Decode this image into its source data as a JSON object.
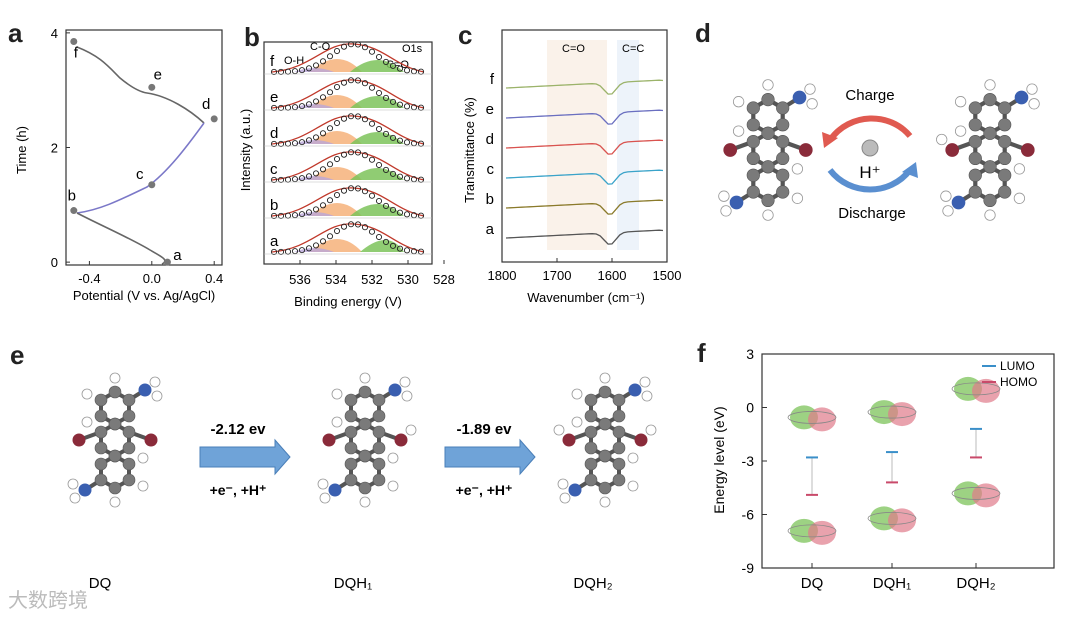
{
  "panels": {
    "a": "a",
    "b": "b",
    "c": "c",
    "d": "d",
    "e": "e",
    "f": "f"
  },
  "panel_a": {
    "ylabel": "Time (h)",
    "xlabel": "Potential (V vs. Ag/AgCl)",
    "yticks": [
      "0",
      "2",
      "4"
    ],
    "xticks": [
      "-0.4",
      "0.0",
      "0.4"
    ],
    "points": [
      {
        "label": "a",
        "x": 0.1,
        "y": 0.0
      },
      {
        "label": "b",
        "x": -0.5,
        "y": 0.9
      },
      {
        "label": "c",
        "x": 0.0,
        "y": 1.35
      },
      {
        "label": "d",
        "x": 0.4,
        "y": 2.5
      },
      {
        "label": "e",
        "x": 0.0,
        "y": 3.05
      },
      {
        "label": "f",
        "x": -0.5,
        "y": 3.85
      }
    ]
  },
  "panel_b": {
    "ylabel": "Intensity (a.u.)",
    "xlabel": "Binding energy (V)",
    "xticks": [
      "536",
      "534",
      "532",
      "530",
      "528"
    ],
    "annotations": {
      "oh": "O-H",
      "co": "C-O",
      "c_eq_o": "C=O",
      "o1s": "O1s"
    },
    "traces": [
      "f",
      "e",
      "d",
      "c",
      "b",
      "a"
    ]
  },
  "panel_c": {
    "ylabel": "Transmittance (%)",
    "xlabel": "Wavenumber (cm⁻¹)",
    "xticks": [
      "1800",
      "1700",
      "1600",
      "1500"
    ],
    "annotations": {
      "c_eq_o": "C=O",
      "c_eq_c": "C=C"
    },
    "traces": [
      "f",
      "e",
      "d",
      "c",
      "b",
      "a"
    ],
    "colors": [
      "#9bb36a",
      "#6a6fc0",
      "#d9534f",
      "#3aa3c9",
      "#8a7a2a",
      "#555555"
    ]
  },
  "panel_d": {
    "charge": "Charge",
    "discharge": "Discharge",
    "proton": "H⁺"
  },
  "panel_e": {
    "step1_energy": "-2.12 ev",
    "step1_reaction": "+e⁻, +H⁺",
    "step2_energy": "-1.89 ev",
    "step2_reaction": "+e⁻, +H⁺",
    "mol1": "DQ",
    "mol2": "DQH₁",
    "mol3": "DQH₂"
  },
  "chart_data": {
    "type": "scatter",
    "title": "",
    "ylabel": "Energy level (eV)",
    "xlabel": "",
    "ylim": [
      -9,
      3
    ],
    "yticks": [
      "3",
      "0",
      "-3",
      "-6",
      "-9"
    ],
    "categories": [
      "DQ",
      "DQH₁",
      "DQH₂"
    ],
    "series": [
      {
        "name": "LUMO",
        "color": "#3a8fc9",
        "values": [
          -2.8,
          -2.5,
          -1.2
        ]
      },
      {
        "name": "HOMO",
        "color": "#c94a6a",
        "values": [
          -4.9,
          -4.2,
          -2.8
        ]
      }
    ]
  },
  "watermark": "大数跨境"
}
